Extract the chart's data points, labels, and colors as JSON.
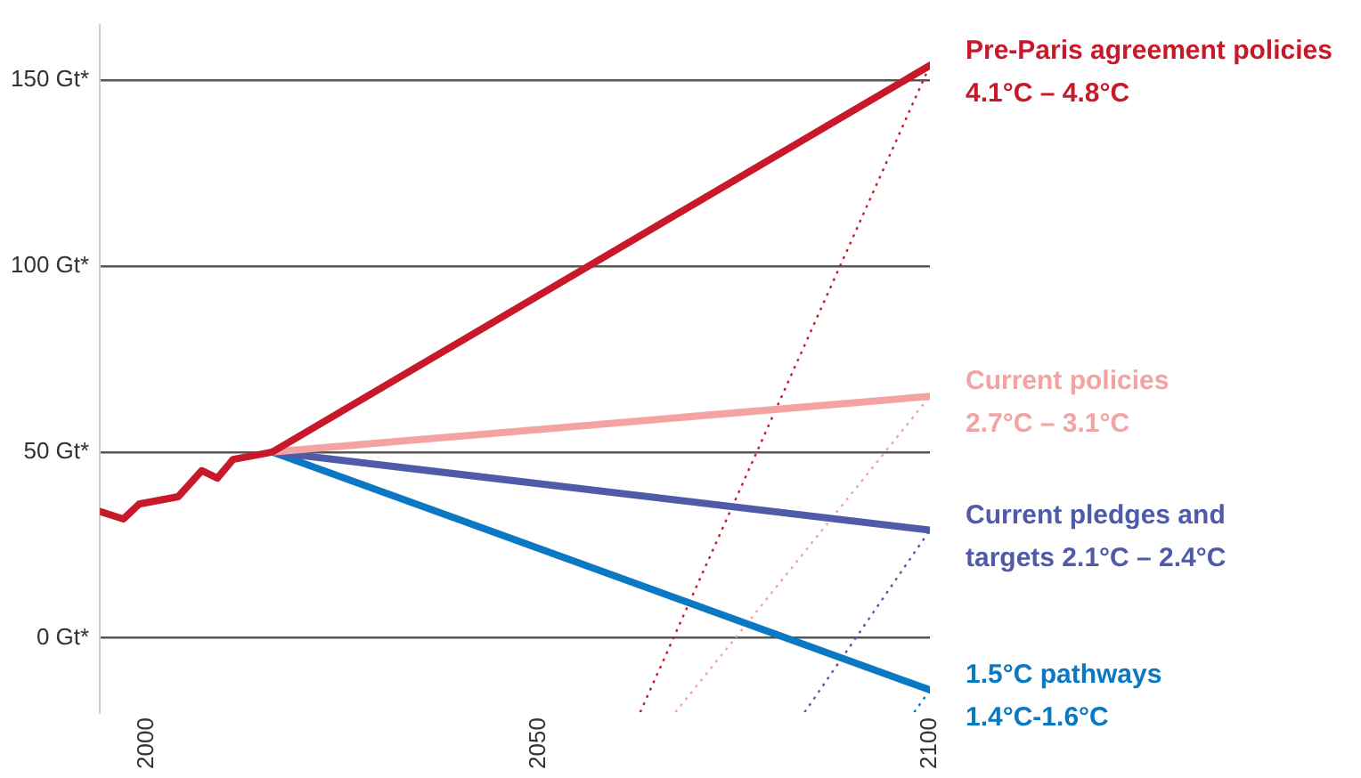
{
  "chart_data": {
    "type": "line",
    "xlim": [
      1994,
      2100
    ],
    "xticks": [
      2000,
      2050,
      2100
    ],
    "ylim": [
      -20,
      165
    ],
    "yticks": [
      {
        "value": 0,
        "label": "0 Gt*"
      },
      {
        "value": 50,
        "label": "50 Gt*"
      },
      {
        "value": 100,
        "label": "100 Gt*"
      },
      {
        "value": 150,
        "label": "150 Gt*"
      }
    ],
    "grid": "y",
    "legend": false,
    "line_style": "solid",
    "marker": "none",
    "series": [
      {
        "name": "Pre-Paris agreement policies\n4.1°C – 4.8°C",
        "color": "#c8192a",
        "x": [
          1994,
          1997,
          1999,
          2004,
          2007,
          2009,
          2011,
          2016,
          2100
        ],
        "values": [
          34,
          32,
          36,
          38,
          45,
          43,
          48,
          50,
          154
        ]
      },
      {
        "name": "Current policies\n2.7°C – 3.1°C",
        "color": "#f4a3a3",
        "x": [
          2016,
          2100
        ],
        "values": [
          50,
          65
        ]
      },
      {
        "name": "Current pledges and\ntargets 2.1°C – 2.4°C",
        "color": "#4f5aa8",
        "x": [
          2016,
          2100
        ],
        "values": [
          50,
          29
        ]
      },
      {
        "name": "1.5°C pathways\n1.4°C-1.6°C",
        "color": "#0a78c2",
        "x": [
          2016,
          2100
        ],
        "values": [
          50,
          -14
        ]
      },
      {
        "color": "#c8192a",
        "line_style": "dotted",
        "x": [
          2063,
          2100
        ],
        "values": [
          -20,
          154
        ]
      },
      {
        "color": "#f4a3a3",
        "line_style": "dotted",
        "x": [
          2067.5,
          2100
        ],
        "values": [
          -20,
          65
        ]
      },
      {
        "color": "#4f5aa8",
        "line_style": "dotted",
        "x": [
          2084,
          2100
        ],
        "values": [
          -20,
          29
        ]
      },
      {
        "color": "#0a78c2",
        "line_style": "dotted",
        "x": [
          2098,
          2100
        ],
        "values": [
          -20,
          -14
        ]
      }
    ]
  }
}
